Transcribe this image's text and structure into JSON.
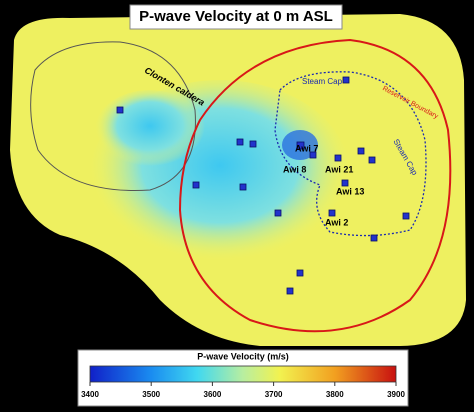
{
  "title": "P-wave Velocity  at 0 m ASL",
  "map_labels": {
    "caldera": "Clonten caldera",
    "steam_cap_1": "Steam Cap",
    "steam_cap_2": "Steam Cap",
    "reservoir": "Reservoir Boundary"
  },
  "wells": [
    "Awi 7",
    "Awi 8",
    "Awi 21",
    "Awi 13",
    "Awi 2"
  ],
  "colorbar": {
    "title": "P-wave Velocity (m/s)",
    "range": [
      3400,
      3900
    ],
    "ticks": [
      3400,
      3500,
      3600,
      3700,
      3800,
      3900
    ]
  }
}
